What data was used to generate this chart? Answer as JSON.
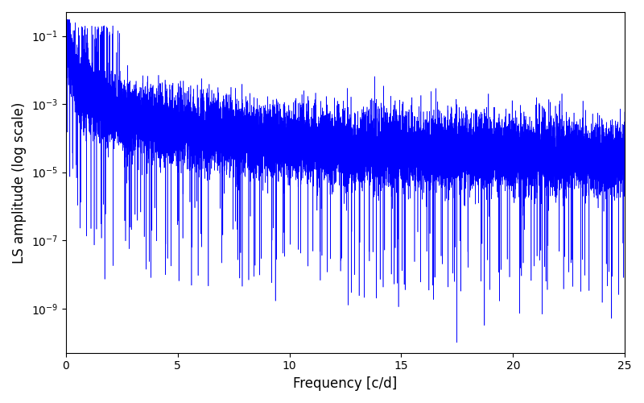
{
  "xlabel": "Frequency [c/d]",
  "ylabel": "LS amplitude (log scale)",
  "line_color": "#0000ff",
  "xlim": [
    0,
    25
  ],
  "ylim_log_min": -10,
  "ylim_log_max": -1,
  "freq_max": 25,
  "n_points": 15000,
  "seed": 123,
  "figsize": [
    8.0,
    5.0
  ],
  "dpi": 100,
  "background_color": "#ffffff",
  "linewidth": 0.4
}
